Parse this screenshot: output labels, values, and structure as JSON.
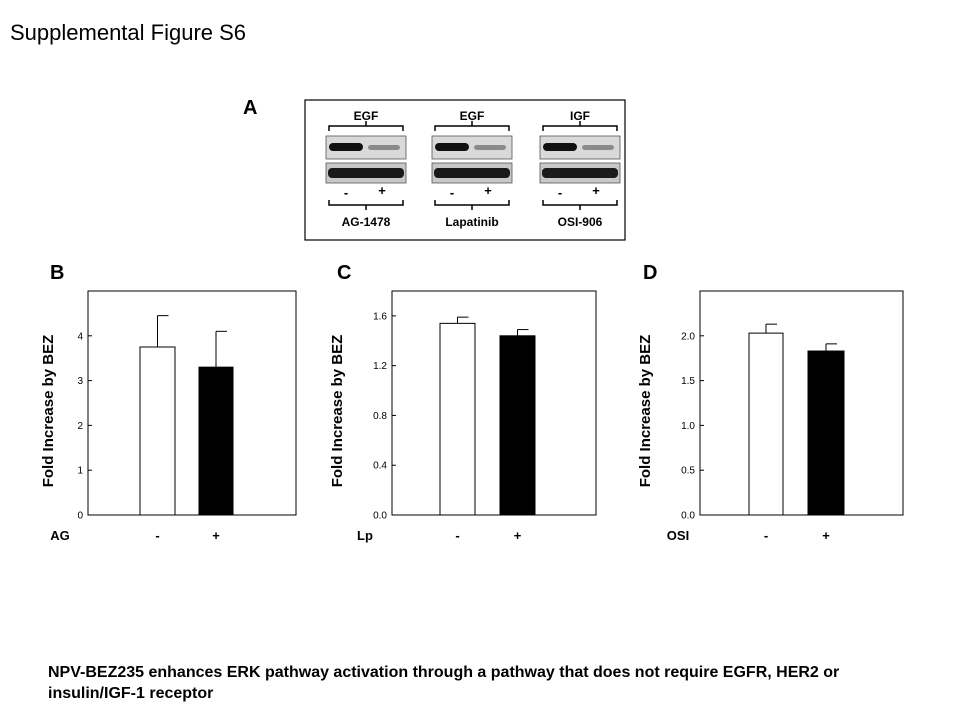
{
  "figure": {
    "title": "Supplemental Figure S6",
    "caption": "NPV-BEZ235 enhances ERK pathway activation through a pathway that does not require EGFR, HER2 or insulin/IGF-1 receptor"
  },
  "panel_a": {
    "letter": "A",
    "blots": [
      {
        "top_label": "EGF",
        "minus": "-",
        "plus": "+",
        "treatment": "AG-1478"
      },
      {
        "top_label": "EGF",
        "minus": "-",
        "plus": "+",
        "treatment": "Lapatinib"
      },
      {
        "top_label": "IGF",
        "minus": "-",
        "plus": "+",
        "treatment": "OSI-906"
      }
    ]
  },
  "chart_data": [
    {
      "type": "bar",
      "panel": "B",
      "ylabel": "Fold Increase by BEZ",
      "treatment_label": "AG",
      "categories": [
        "-",
        "+"
      ],
      "values": [
        3.75,
        3.3
      ],
      "errors": [
        0.7,
        0.8
      ],
      "bar_colors": [
        "#ffffff",
        "#000000"
      ],
      "ylim": [
        0,
        5.0
      ],
      "yticks": [
        "0",
        "1",
        "2",
        "3",
        "4"
      ],
      "ytick_values": [
        0,
        1,
        2,
        3,
        4
      ]
    },
    {
      "type": "bar",
      "panel": "C",
      "ylabel": "Fold Increase by BEZ",
      "treatment_label": "Lp",
      "categories": [
        "-",
        "+"
      ],
      "values": [
        1.54,
        1.44
      ],
      "errors": [
        0.05,
        0.05
      ],
      "bar_colors": [
        "#ffffff",
        "#000000"
      ],
      "ylim": [
        0,
        1.8
      ],
      "yticks": [
        "0.0",
        "0.4",
        "0.8",
        "1.2",
        "1.6"
      ],
      "ytick_values": [
        0,
        0.4,
        0.8,
        1.2,
        1.6
      ]
    },
    {
      "type": "bar",
      "panel": "D",
      "ylabel": "Fold Increase by BEZ",
      "treatment_label": "OSI",
      "categories": [
        "-",
        "+"
      ],
      "values": [
        2.03,
        1.83
      ],
      "errors": [
        0.1,
        0.08
      ],
      "bar_colors": [
        "#ffffff",
        "#000000"
      ],
      "ylim": [
        0,
        2.5
      ],
      "yticks": [
        "0.0",
        "0.5",
        "1.0",
        "1.5",
        "2.0"
      ],
      "ytick_values": [
        0,
        0.5,
        1.0,
        1.5,
        2.0
      ]
    }
  ]
}
